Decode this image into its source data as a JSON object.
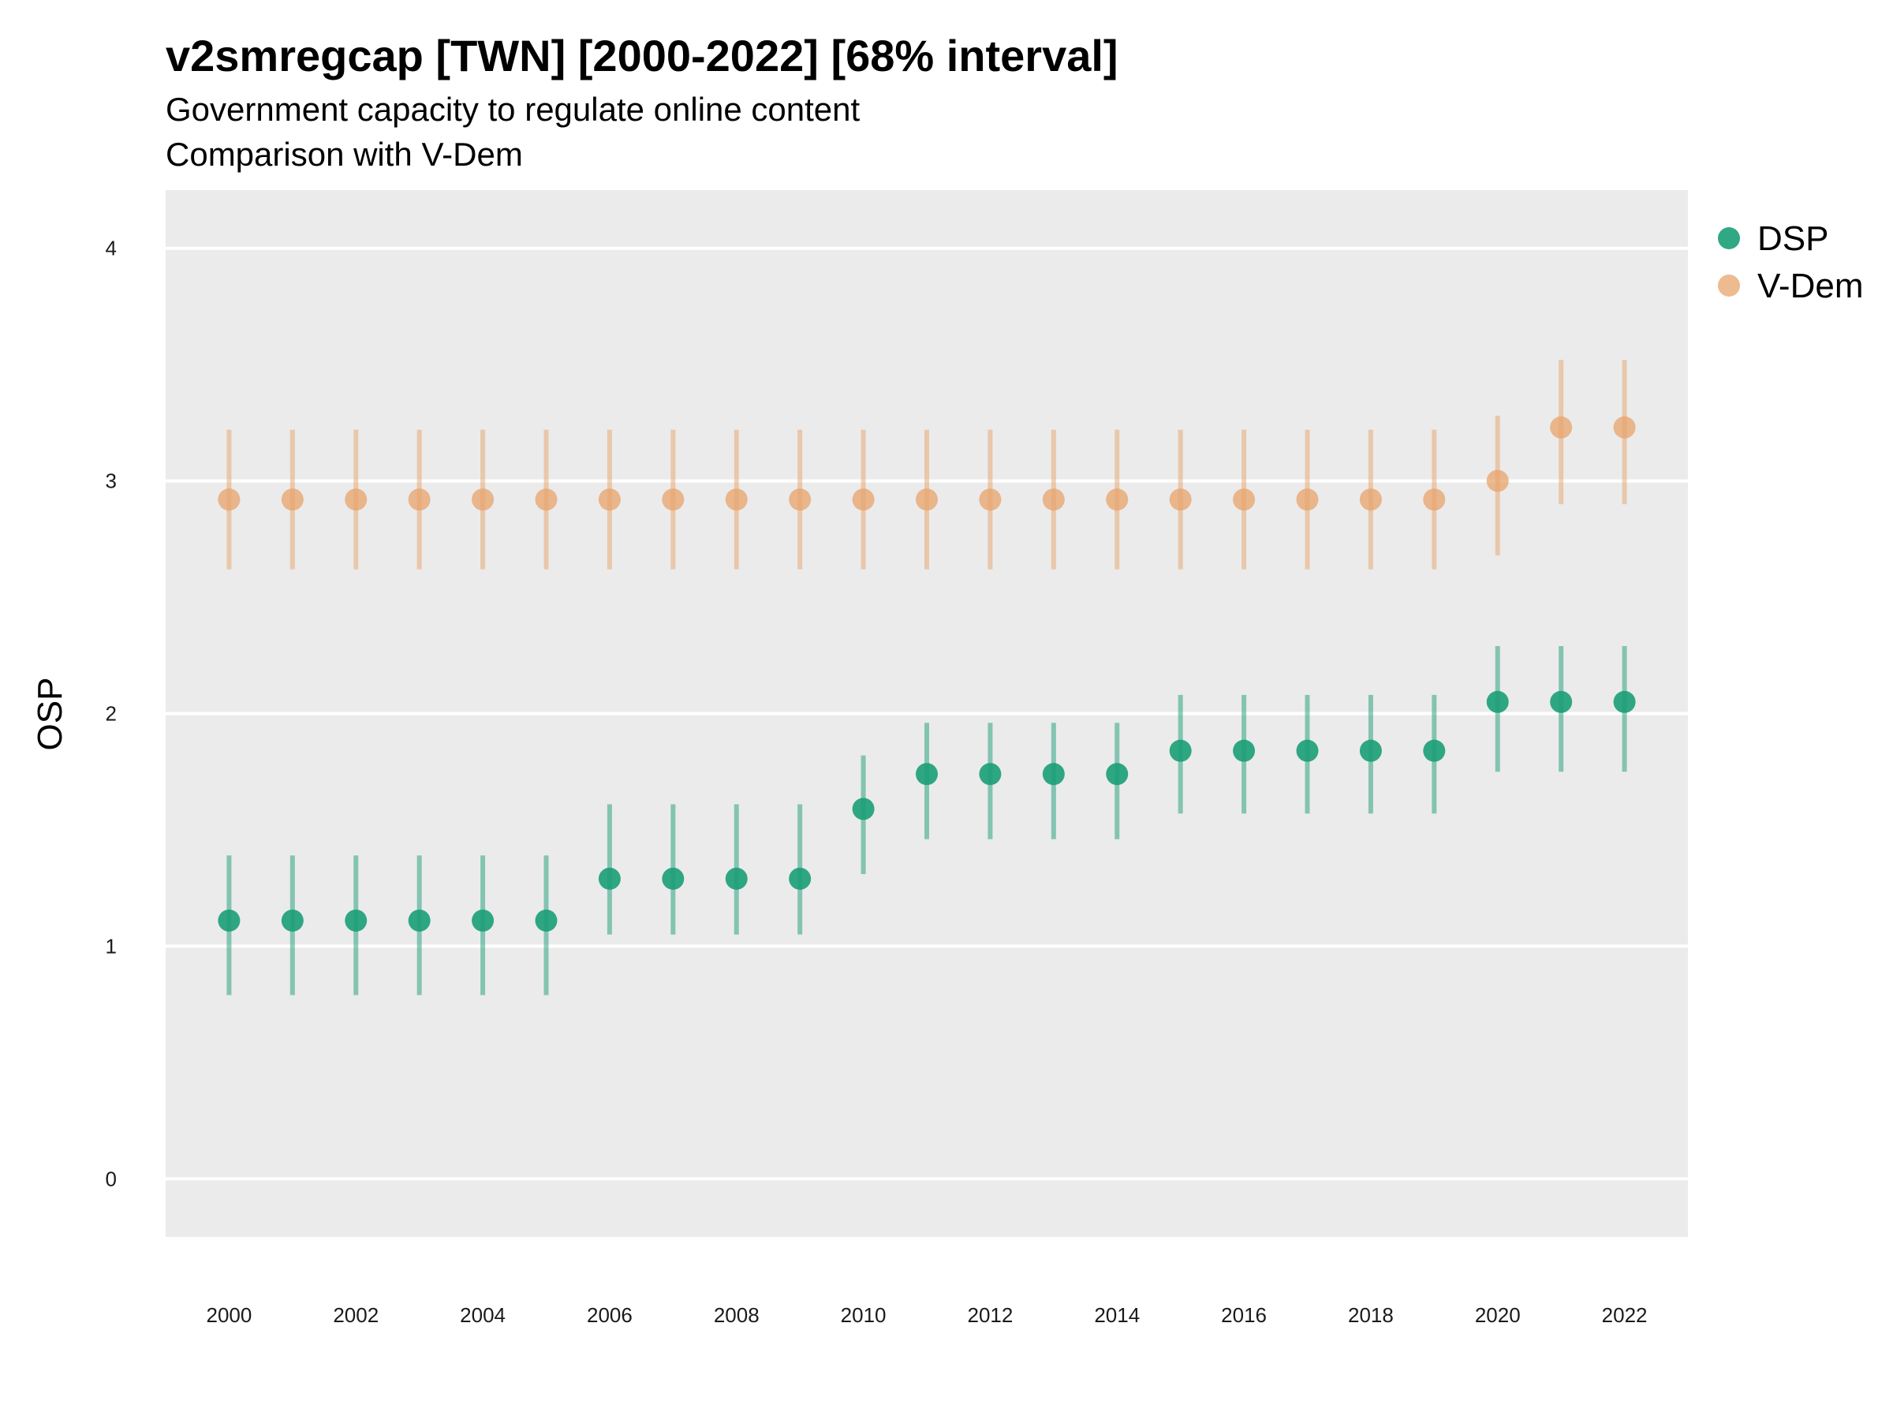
{
  "chart_data": {
    "type": "scatter",
    "title": "v2smregcap [TWN] [2000-2022] [68% interval]",
    "subtitle_lines": [
      "Government capacity to regulate online content",
      "Comparison with V-Dem"
    ],
    "xlabel": "",
    "ylabel": "OSP",
    "ylim": [
      -0.25,
      4.25
    ],
    "yticks": [
      0,
      1,
      2,
      3,
      4
    ],
    "x": [
      2000,
      2001,
      2002,
      2003,
      2004,
      2005,
      2006,
      2007,
      2008,
      2009,
      2010,
      2011,
      2012,
      2013,
      2014,
      2015,
      2016,
      2017,
      2018,
      2019,
      2020,
      2021,
      2022
    ],
    "xticks": [
      2000,
      2002,
      2004,
      2006,
      2008,
      2010,
      2012,
      2014,
      2016,
      2018,
      2020,
      2022
    ],
    "grid": true,
    "legend_position": "top-right",
    "series": [
      {
        "name": "DSP",
        "color": "#1b9e77",
        "values": [
          1.11,
          1.11,
          1.11,
          1.11,
          1.11,
          1.11,
          1.29,
          1.29,
          1.29,
          1.29,
          1.59,
          1.74,
          1.74,
          1.74,
          1.74,
          1.84,
          1.84,
          1.84,
          1.84,
          1.84,
          2.05,
          2.05,
          2.05
        ],
        "lower": [
          0.79,
          0.79,
          0.79,
          0.79,
          0.79,
          0.79,
          1.05,
          1.05,
          1.05,
          1.05,
          1.31,
          1.46,
          1.46,
          1.46,
          1.46,
          1.57,
          1.57,
          1.57,
          1.57,
          1.57,
          1.75,
          1.75,
          1.75
        ],
        "upper": [
          1.39,
          1.39,
          1.39,
          1.39,
          1.39,
          1.39,
          1.61,
          1.61,
          1.61,
          1.61,
          1.82,
          1.96,
          1.96,
          1.96,
          1.96,
          2.08,
          2.08,
          2.08,
          2.08,
          2.08,
          2.29,
          2.29,
          2.29
        ]
      },
      {
        "name": "V-Dem",
        "color": "#e8a36b",
        "values": [
          2.92,
          2.92,
          2.92,
          2.92,
          2.92,
          2.92,
          2.92,
          2.92,
          2.92,
          2.92,
          2.92,
          2.92,
          2.92,
          2.92,
          2.92,
          2.92,
          2.92,
          2.92,
          2.92,
          2.92,
          3.0,
          3.23,
          3.23
        ],
        "lower": [
          2.62,
          2.62,
          2.62,
          2.62,
          2.62,
          2.62,
          2.62,
          2.62,
          2.62,
          2.62,
          2.62,
          2.62,
          2.62,
          2.62,
          2.62,
          2.62,
          2.62,
          2.62,
          2.62,
          2.62,
          2.68,
          2.9,
          2.9
        ],
        "upper": [
          3.22,
          3.22,
          3.22,
          3.22,
          3.22,
          3.22,
          3.22,
          3.22,
          3.22,
          3.22,
          3.22,
          3.22,
          3.22,
          3.22,
          3.22,
          3.22,
          3.22,
          3.22,
          3.22,
          3.22,
          3.28,
          3.52,
          3.52
        ]
      }
    ]
  }
}
